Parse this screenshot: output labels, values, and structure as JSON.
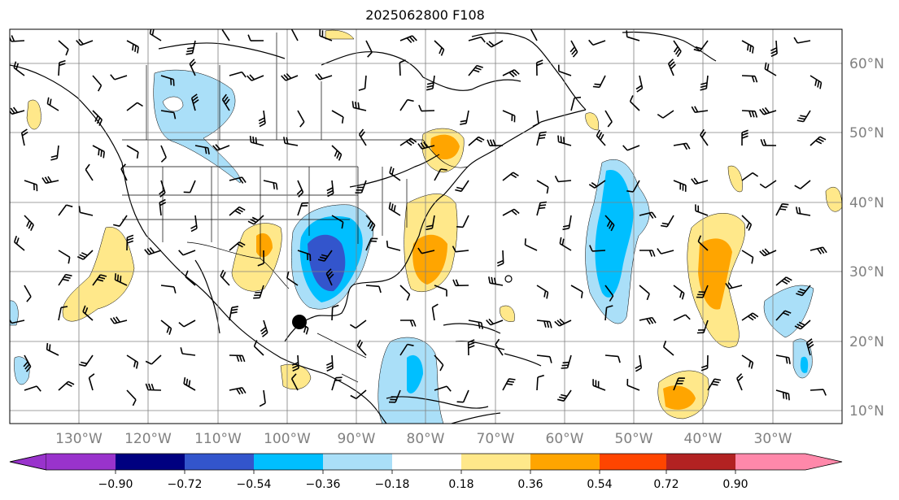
{
  "title": "2025062800 F108",
  "map": {
    "projection": "PlateCarree",
    "lon_range": [
      -142,
      -1
    ],
    "lat_range": [
      8,
      65
    ],
    "grid": true,
    "lat_labels": [
      "60°N",
      "50°N",
      "40°N",
      "30°N",
      "20°N",
      "10°N"
    ],
    "lon_labels": [
      "130°W",
      "120°W",
      "110°W",
      "100°W",
      "90°W",
      "80°W",
      "70°W",
      "60°W",
      "50°W",
      "40°W",
      "30°W"
    ],
    "storm_marker": {
      "lon": -101.5,
      "lat": 22.8
    }
  },
  "colorbar": {
    "tick_labels": [
      "−0.90",
      "−0.72",
      "−0.54",
      "−0.36",
      "−0.18",
      "0.18",
      "0.36",
      "0.54",
      "0.72",
      "0.90"
    ],
    "colors": [
      "#9933cc",
      "#000080",
      "#3355cc",
      "#00bfff",
      "#aadff8",
      "#ffffff",
      "#ffe88a",
      "#ffa500",
      "#ff4500",
      "#b22222",
      "#ff88aa"
    ]
  }
}
